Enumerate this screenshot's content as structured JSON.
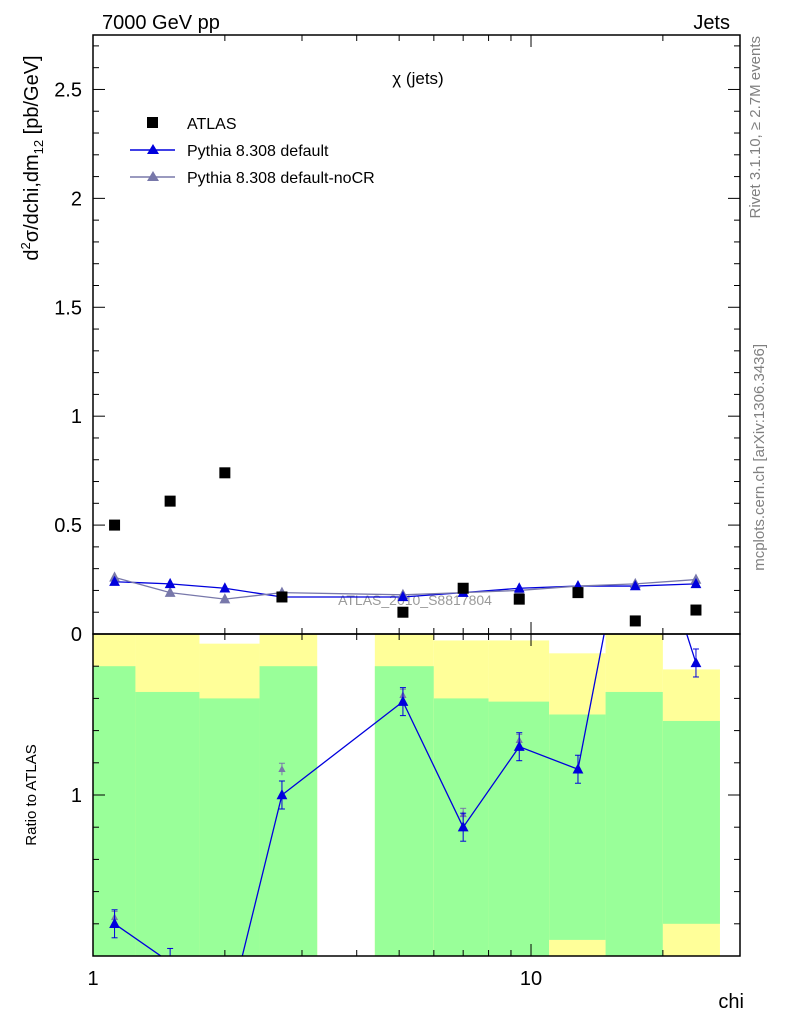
{
  "header": {
    "left_title": "7000 GeV pp",
    "right_title": "Jets"
  },
  "side_labels": {
    "rivet": "Rivet 3.1.10, ≥ 2.7M events",
    "mcplots": "mcplots.cern.ch [arXiv:1306.3436]"
  },
  "chart_data": [
    {
      "type": "scatter",
      "panel": "main",
      "title": "χ (jets)",
      "ylabel_parts": {
        "d": "d",
        "sup": "2",
        "mid": "σ/dchi,dm",
        "sub": "12",
        "unit": " [pb/GeV]"
      },
      "xlabel": "chi",
      "x_scale": "log",
      "xlim": [
        1,
        30
      ],
      "ylim": [
        0,
        2.75
      ],
      "yticks": [
        0,
        0.5,
        1,
        1.5,
        2,
        2.5
      ],
      "ytick_labels": [
        "0",
        "0.5",
        "1",
        "1.5",
        "2",
        "2.5"
      ],
      "watermark": "ATLAS_2010_S8817804",
      "legend_position": "top-left",
      "series": [
        {
          "name": "ATLAS",
          "marker": "square",
          "color": "#000000",
          "x": [
            1.12,
            1.5,
            2.0,
            2.7,
            5.1,
            7.0,
            9.4,
            12.8,
            17.3,
            23.8
          ],
          "y": [
            0.5,
            0.61,
            0.74,
            0.17,
            0.1,
            0.21,
            0.16,
            0.19,
            0.06,
            0.11
          ]
        },
        {
          "name": "Pythia 8.308 default",
          "marker": "triangle",
          "color": "#0000dd",
          "x": [
            1.12,
            1.5,
            2.0,
            2.7,
            5.1,
            7.0,
            9.4,
            12.8,
            17.3,
            23.8
          ],
          "y": [
            0.24,
            0.23,
            0.21,
            0.17,
            0.17,
            0.19,
            0.21,
            0.22,
            0.22,
            0.23
          ]
        },
        {
          "name": "Pythia 8.308 default-noCR",
          "marker": "triangle",
          "color": "#7878aa",
          "x": [
            1.12,
            1.5,
            2.0,
            2.7,
            5.1,
            7.0,
            9.4,
            12.8,
            17.3,
            23.8
          ],
          "y": [
            0.26,
            0.19,
            0.16,
            0.19,
            0.18,
            0.19,
            0.2,
            0.22,
            0.23,
            0.25
          ]
        }
      ]
    },
    {
      "type": "line",
      "panel": "ratio",
      "ylabel": "Ratio to ATLAS",
      "xlabel": "chi",
      "x_scale": "log",
      "xlim": [
        1,
        30
      ],
      "xticks": [
        1,
        10
      ],
      "xtick_labels": [
        "1",
        "10"
      ],
      "ylim": [
        0.5,
        1.5
      ],
      "yticks": [
        1
      ],
      "ytick_labels": [
        "1"
      ],
      "bins": [
        {
          "lo": 1.0,
          "hi": 1.25,
          "green": [
            0.5,
            1.4
          ],
          "yellow": [
            0.5,
            1.5
          ]
        },
        {
          "lo": 1.25,
          "hi": 1.75,
          "green": [
            0.5,
            1.32
          ],
          "yellow": [
            0.5,
            1.5
          ]
        },
        {
          "lo": 1.75,
          "hi": 2.4,
          "green": [
            0.5,
            1.3
          ],
          "yellow": [
            0.5,
            1.47
          ]
        },
        {
          "lo": 2.4,
          "hi": 3.25,
          "green": [
            0.5,
            1.4
          ],
          "yellow": [
            0.5,
            1.5
          ]
        },
        {
          "lo": 4.4,
          "hi": 6.0,
          "green": [
            0.5,
            1.4
          ],
          "yellow": [
            0.5,
            1.5
          ]
        },
        {
          "lo": 6.0,
          "hi": 8.0,
          "green": [
            0.5,
            1.3
          ],
          "yellow": [
            0.5,
            1.48
          ]
        },
        {
          "lo": 8.0,
          "hi": 11.0,
          "green": [
            0.5,
            1.29
          ],
          "yellow": [
            0.5,
            1.48
          ]
        },
        {
          "lo": 11.0,
          "hi": 14.8,
          "green": [
            0.55,
            1.25
          ],
          "yellow": [
            0.5,
            1.44
          ]
        },
        {
          "lo": 14.8,
          "hi": 20.0,
          "green": [
            0.5,
            1.32
          ],
          "yellow": [
            0.5,
            1.5
          ]
        },
        {
          "lo": 20.0,
          "hi": 27.0,
          "green": [
            0.6,
            1.23
          ],
          "yellow": [
            0.5,
            1.39
          ]
        }
      ],
      "series": [
        {
          "name": "Pythia 8.308 default",
          "color": "#0000dd",
          "x": [
            1.12,
            1.5,
            2.0,
            2.7,
            5.1,
            7.0,
            9.4,
            12.8,
            17.3,
            23.8
          ],
          "y": [
            0.6,
            0.48,
            0.28,
            1.0,
            1.29,
            0.9,
            1.15,
            1.08,
            2.0,
            1.41
          ]
        },
        {
          "name": "Pythia 8.308 default-noCR",
          "color": "#7878aa",
          "x": [
            1.12,
            2.7,
            5.1,
            7.0,
            9.4
          ],
          "y": [
            0.62,
            1.08,
            1.31,
            0.94,
            1.17
          ]
        }
      ]
    }
  ]
}
